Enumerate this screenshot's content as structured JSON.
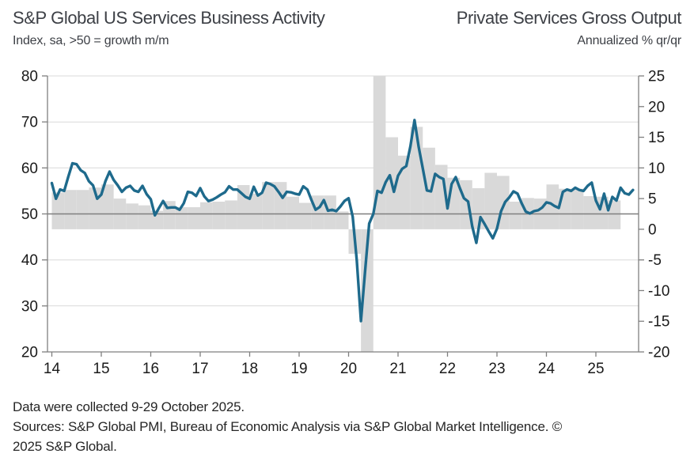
{
  "header": {
    "title_left": "S&P Global US Services Business Activity",
    "subtitle_left": "Index, sa, >50 = growth m/m",
    "title_right": "Private Services Gross Output",
    "subtitle_right": "Annualized % qr/qr"
  },
  "footer": {
    "lines": [
      "Data were collected 9-29 October 2025.",
      "Sources: S&P Global PMI, Bureau of Economic Analysis via S&P Global Market Intelligence. ©",
      "2025 S&P Global."
    ]
  },
  "chart_data": {
    "type": "line",
    "subtype": "combo line (monthly, left axis) + bars (quarterly, right axis)",
    "title": "S&P Global US Services Business Activity vs Private Services Gross Output",
    "xlabel": "",
    "ylabel_left": "Index, sa, >50 = growth m/m",
    "ylabel_right": "Annualized % qr/qr",
    "x_axis": {
      "tick_labels": [
        "14",
        "15",
        "16",
        "17",
        "18",
        "19",
        "20",
        "21",
        "22",
        "23",
        "24",
        "25"
      ],
      "range_months": "Jan 2014 - Oct 2025"
    },
    "left_axis": {
      "min": 20,
      "max": 80,
      "ticks": [
        80,
        70,
        60,
        50,
        40,
        30,
        20
      ]
    },
    "right_axis": {
      "min": -20,
      "max": 25,
      "ticks": [
        25,
        20,
        15,
        10,
        5,
        0,
        -5,
        -10,
        -15,
        -20
      ]
    },
    "reference_line": {
      "axis": "left",
      "value": 50
    },
    "series": [
      {
        "name": "S&P Global US Services Business Activity (PMI)",
        "type": "line",
        "axis": "left",
        "freq": "monthly",
        "start": "2014-01",
        "values": [
          56.7,
          53.3,
          55.3,
          55.0,
          58.1,
          61.0,
          60.8,
          59.5,
          58.9,
          57.1,
          56.2,
          53.3,
          54.2,
          57.1,
          59.2,
          57.4,
          56.2,
          54.8,
          55.7,
          56.1,
          55.1,
          54.8,
          56.1,
          54.3,
          53.2,
          49.7,
          51.3,
          52.8,
          51.3,
          51.4,
          51.4,
          50.9,
          52.3,
          54.8,
          54.6,
          53.9,
          55.6,
          53.8,
          52.8,
          53.1,
          53.6,
          54.2,
          54.7,
          56.0,
          55.3,
          55.3,
          54.5,
          53.7,
          53.3,
          55.9,
          54.0,
          54.6,
          56.8,
          56.5,
          56.0,
          54.8,
          53.5,
          54.8,
          54.7,
          54.4,
          54.2,
          56.0,
          55.3,
          53.0,
          50.9,
          51.5,
          53.0,
          50.7,
          50.9,
          50.6,
          51.6,
          52.8,
          53.4,
          49.4,
          39.8,
          26.7,
          37.5,
          47.9,
          50.0,
          55.0,
          54.6,
          56.9,
          58.4,
          54.8,
          58.3,
          59.8,
          60.4,
          64.7,
          70.4,
          64.6,
          59.9,
          55.1,
          54.9,
          58.7,
          58.0,
          57.6,
          51.2,
          56.5,
          58.0,
          55.6,
          53.4,
          52.7,
          47.3,
          43.7,
          49.3,
          47.8,
          46.2,
          44.7,
          46.8,
          50.6,
          52.6,
          53.6,
          54.9,
          54.4,
          52.3,
          50.5,
          50.1,
          50.6,
          50.8,
          51.4,
          52.5,
          52.3,
          51.7,
          51.3,
          54.8,
          55.3,
          55.0,
          55.7,
          55.2,
          55.0,
          56.1,
          56.8,
          52.9,
          51.0,
          54.4,
          50.8,
          53.7,
          52.9,
          55.7,
          54.5,
          54.2,
          55.2
        ]
      },
      {
        "name": "Private Services Gross Output (annualized % qr/qr)",
        "type": "bar",
        "axis": "right",
        "freq": "quarterly",
        "start": "2014-Q1",
        "values": [
          6.0,
          6.4,
          6.4,
          6.8,
          7.3,
          5.0,
          4.2,
          3.9,
          3.0,
          4.6,
          3.6,
          3.6,
          4.4,
          4.5,
          4.7,
          7.2,
          5.8,
          7.7,
          7.7,
          5.3,
          4.3,
          5.5,
          5.5,
          2.9,
          -4.0,
          -20.0,
          25.0,
          15.0,
          12.0,
          16.7,
          13.3,
          10.5,
          8.4,
          8.0,
          6.7,
          9.2,
          8.7,
          4.5,
          5.1,
          5.0,
          7.3,
          6.6,
          6.6,
          5.4,
          5.3,
          4.7
        ]
      }
    ],
    "colors": {
      "line": "#1e6a8c",
      "bar": "#d9d9d9",
      "gridline": "#d9d9d9",
      "reference_line": "#7f7f7f",
      "axis": "#7f7f7f",
      "tick_label": "#1a1a1a"
    },
    "layout_hints": {
      "grid": "horizontal gridlines only, drawn over bars",
      "legend": "none (titles act as series labels)",
      "bars_baseline": "0 on right axis",
      "clipped_bars": "2020 Q2 clipped at -20 and 2020 Q3 clipped at +25 (axis limits)"
    }
  }
}
